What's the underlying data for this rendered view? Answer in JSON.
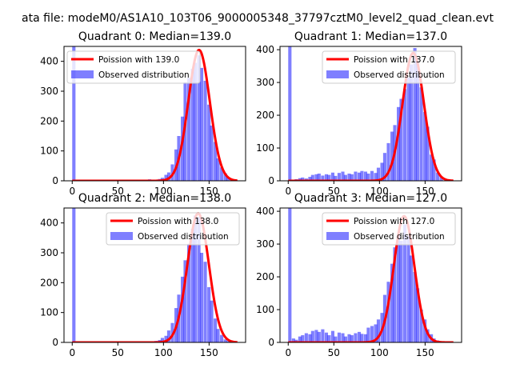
{
  "figure": {
    "suptitle": "ata file: modeM0/AS1A10_103T06_9000005348_37797cztM0_level2_quad_clean.evt"
  },
  "chart_data": [
    {
      "type": "bar",
      "title": "Quadrant 0: Median=139.0",
      "xlabel": "",
      "ylabel": "",
      "xlim": [
        -9,
        190
      ],
      "ylim": [
        0,
        450
      ],
      "xticks": [
        0,
        50,
        100,
        150
      ],
      "yticks": [
        0,
        100,
        200,
        300,
        400
      ],
      "bin_width": 3.6,
      "legend": {
        "placement": "upper-left"
      },
      "series": [
        {
          "name": "Poission with 139.0",
          "kind": "line",
          "color": "#ff0000",
          "lambda": 139.0,
          "x_range": [
            0,
            181
          ],
          "scale": 438,
          "sigma_scale": 1.0
        },
        {
          "name": "Observed distribution",
          "kind": "histogram",
          "color": "#0000ff",
          "opacity": 0.5,
          "x": [
            0,
            61,
            65,
            68,
            72,
            76,
            79,
            83,
            86,
            90,
            94,
            97,
            101,
            104,
            108,
            112,
            115,
            119,
            122,
            126,
            130,
            133,
            137,
            140,
            144,
            148,
            151,
            155,
            158,
            162,
            166,
            169,
            173
          ],
          "values": [
            450,
            1,
            1,
            2,
            3,
            3,
            4,
            5,
            3,
            4,
            6,
            10,
            20,
            28,
            55,
            105,
            150,
            215,
            330,
            345,
            375,
            395,
            420,
            378,
            335,
            255,
            185,
            130,
            75,
            45,
            25,
            12,
            5
          ]
        }
      ]
    },
    {
      "type": "bar",
      "title": "Quadrant 1: Median=137.0",
      "xlabel": "",
      "ylabel": "",
      "xlim": [
        -9,
        190
      ],
      "ylim": [
        0,
        410
      ],
      "xticks": [
        0,
        50,
        100,
        150
      ],
      "yticks": [
        0,
        100,
        200,
        300,
        400
      ],
      "bin_width": 3.6,
      "legend": {
        "placement": "upper-right"
      },
      "series": [
        {
          "name": "Poission with 137.0",
          "kind": "line",
          "color": "#ff0000",
          "lambda": 137.0,
          "x_range": [
            0,
            181
          ],
          "scale": 390,
          "sigma_scale": 1.0
        },
        {
          "name": "Observed distribution",
          "kind": "histogram",
          "color": "#0000ff",
          "opacity": 0.5,
          "x": [
            0,
            4,
            7,
            11,
            14,
            18,
            22,
            25,
            29,
            32,
            36,
            40,
            43,
            47,
            50,
            54,
            58,
            61,
            65,
            68,
            72,
            76,
            79,
            83,
            86,
            90,
            94,
            97,
            101,
            104,
            108,
            112,
            115,
            119,
            122,
            126,
            130,
            133,
            137,
            140,
            144,
            148,
            151,
            155,
            158,
            162,
            166
          ],
          "values": [
            410,
            3,
            5,
            8,
            10,
            7,
            12,
            18,
            20,
            22,
            16,
            20,
            18,
            25,
            15,
            24,
            28,
            18,
            22,
            20,
            28,
            25,
            30,
            28,
            22,
            30,
            24,
            40,
            55,
            85,
            115,
            150,
            170,
            225,
            250,
            280,
            315,
            355,
            405,
            365,
            285,
            210,
            165,
            80,
            65,
            25,
            12
          ]
        }
      ]
    },
    {
      "type": "bar",
      "title": "Quadrant 2: Median=138.0",
      "xlabel": "",
      "ylabel": "",
      "xlim": [
        -9,
        190
      ],
      "ylim": [
        0,
        450
      ],
      "xticks": [
        0,
        50,
        100,
        150
      ],
      "yticks": [
        0,
        100,
        200,
        300,
        400
      ],
      "bin_width": 3.6,
      "legend": {
        "placement": "upper-right"
      },
      "series": [
        {
          "name": "Poission with 138.0",
          "kind": "line",
          "color": "#ff0000",
          "lambda": 138.0,
          "x_range": [
            0,
            181
          ],
          "scale": 432,
          "sigma_scale": 1.0
        },
        {
          "name": "Observed distribution",
          "kind": "histogram",
          "color": "#0000ff",
          "opacity": 0.5,
          "x": [
            0,
            65,
            72,
            79,
            86,
            90,
            94,
            97,
            101,
            104,
            108,
            112,
            115,
            119,
            122,
            126,
            130,
            133,
            137,
            140,
            144,
            148,
            151,
            155,
            158,
            162,
            166,
            169
          ],
          "values": [
            450,
            1,
            1,
            2,
            3,
            5,
            8,
            15,
            22,
            40,
            65,
            115,
            160,
            220,
            275,
            330,
            380,
            425,
            420,
            300,
            270,
            185,
            140,
            80,
            45,
            25,
            10,
            4
          ]
        }
      ]
    },
    {
      "type": "bar",
      "title": "Quadrant 3: Median=127.0",
      "xlabel": "",
      "ylabel": "",
      "xlim": [
        -9,
        190
      ],
      "ylim": [
        0,
        410
      ],
      "xticks": [
        0,
        50,
        100,
        150
      ],
      "yticks": [
        0,
        100,
        200,
        300,
        400
      ],
      "bin_width": 3.6,
      "legend": {
        "placement": "upper-right"
      },
      "series": [
        {
          "name": "Poission with 127.0",
          "kind": "line",
          "color": "#ff0000",
          "lambda": 127.0,
          "x_range": [
            0,
            181
          ],
          "scale": 385,
          "sigma_scale": 1.0
        },
        {
          "name": "Observed distribution",
          "kind": "histogram",
          "color": "#0000ff",
          "opacity": 0.5,
          "x": [
            0,
            4,
            7,
            11,
            14,
            18,
            22,
            25,
            29,
            32,
            36,
            40,
            43,
            47,
            50,
            54,
            58,
            61,
            65,
            68,
            72,
            76,
            79,
            83,
            86,
            90,
            94,
            97,
            101,
            104,
            108,
            112,
            115,
            119,
            122,
            126,
            130,
            133,
            137,
            140,
            144,
            148,
            151,
            155,
            158,
            162,
            166,
            169
          ],
          "values": [
            410,
            12,
            8,
            18,
            22,
            28,
            25,
            35,
            38,
            32,
            40,
            30,
            22,
            35,
            18,
            30,
            28,
            18,
            25,
            22,
            28,
            32,
            26,
            25,
            45,
            50,
            55,
            70,
            90,
            145,
            185,
            240,
            290,
            330,
            310,
            360,
            325,
            265,
            215,
            165,
            100,
            70,
            40,
            25,
            12,
            6,
            3,
            1
          ]
        }
      ]
    }
  ]
}
